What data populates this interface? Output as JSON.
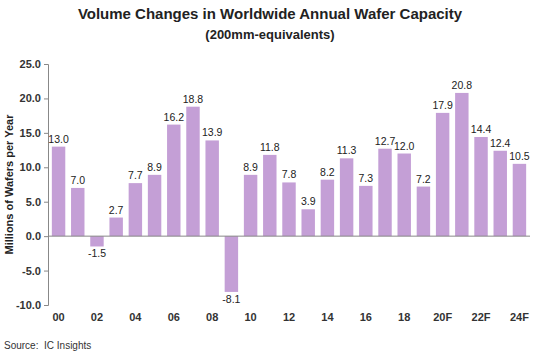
{
  "chart_data": {
    "type": "bar",
    "title": "Volume Changes in Worldwide Annual Wafer Capacity",
    "subtitle": "(200mm-equivalents)",
    "y_label": "Millions of Wafers per Year",
    "source": "Source:  IC Insights",
    "categories": [
      "00",
      null,
      "02",
      null,
      "04",
      null,
      "06",
      null,
      "08",
      null,
      "10",
      null,
      "12",
      null,
      "14",
      null,
      "16",
      null,
      "18",
      null,
      "20F",
      null,
      "22F",
      null,
      "24F"
    ],
    "values": [
      13.0,
      7.0,
      -1.5,
      2.7,
      7.7,
      8.9,
      16.2,
      18.8,
      13.9,
      -8.1,
      8.9,
      11.8,
      7.8,
      3.9,
      8.2,
      11.3,
      7.3,
      12.7,
      12.0,
      7.2,
      17.9,
      20.8,
      14.4,
      12.4,
      10.5
    ],
    "value_labels": [
      "13.0",
      "7.0",
      "-1.5",
      "2.7",
      "7.7",
      "8.9",
      "16.2",
      "18.8",
      "13.9",
      "-8.1",
      "8.9",
      "11.8",
      "7.8",
      "3.9",
      "8.2",
      "11.3",
      "7.3",
      "12.7",
      "12.0",
      "7.2",
      "17.9",
      "20.8",
      "14.4",
      "12.4",
      "10.5"
    ],
    "data_labels": true,
    "color": "#c49fd6",
    "ylim": [
      -10,
      25
    ],
    "yticks": [
      {
        "value": -10,
        "label": "-10.0"
      },
      {
        "value": -5,
        "label": "-5.0"
      },
      {
        "value": 0,
        "label": "0.0"
      },
      {
        "value": 5,
        "label": "5.0"
      },
      {
        "value": 10,
        "label": "10.0"
      },
      {
        "value": 15,
        "label": "15.0"
      },
      {
        "value": 20,
        "label": "20.0"
      },
      {
        "value": 25,
        "label": "25.0"
      }
    ],
    "grid": false
  }
}
